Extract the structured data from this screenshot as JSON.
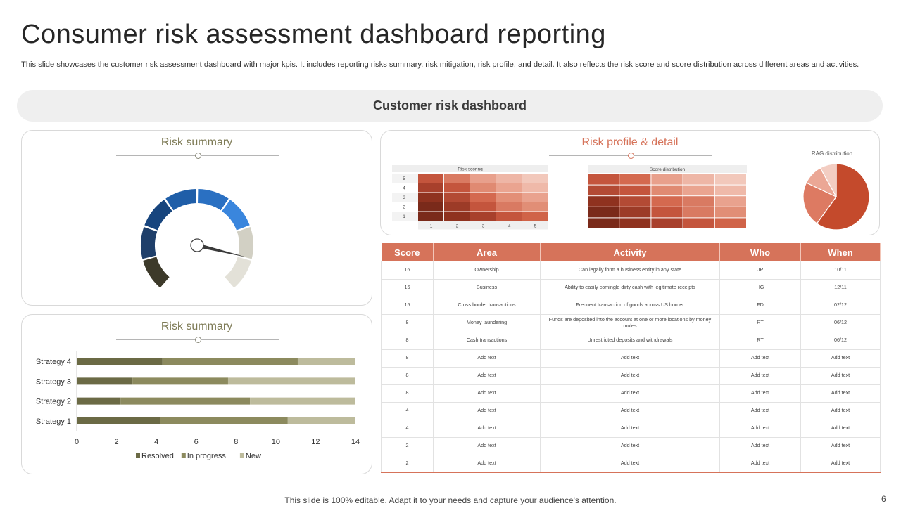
{
  "header": {
    "title": "Consumer risk assessment dashboard reporting",
    "description": "This slide showcases the customer risk assessment dashboard with major kpis. It includes reporting risks summary, risk mitigation, risk profile, and detail. It also reflects the risk score and score distribution across different areas and activities."
  },
  "banner": {
    "label": "Customer risk dashboard"
  },
  "colors": {
    "olive_title": "#7d7a55",
    "orange_title": "#d6735a",
    "table_header": "#d6735a",
    "bar_resolved": "#6b6a45",
    "bar_progress": "#8c8a5e",
    "bar_new": "#bdbb9c"
  },
  "gauge_panel": {
    "title": "Risk summary"
  },
  "profile_panel": {
    "title": "Risk profile & detail",
    "risk_scoring": {
      "label": "Risk scoring",
      "row_labels": [
        "5",
        "4",
        "3",
        "2",
        "1"
      ],
      "col_labels": [
        "1",
        "2",
        "3",
        "4",
        "5"
      ],
      "colors": [
        [
          "#c4553d",
          "#d97a62",
          "#e8a08c",
          "#eeb6a6",
          "#f2c8bb"
        ],
        [
          "#a8402c",
          "#c4553d",
          "#e08a72",
          "#eaa490",
          "#efb9a9"
        ],
        [
          "#8f321f",
          "#b34a34",
          "#d4694f",
          "#e38f77",
          "#e9a28e"
        ],
        [
          "#7a2a1a",
          "#9c3b27",
          "#c4553d",
          "#d97a62",
          "#e18e76"
        ],
        [
          "#7a2a1a",
          "#8f321f",
          "#a8402c",
          "#c4553d",
          "#d06348"
        ]
      ]
    },
    "score_distribution": {
      "label": "Score distribution",
      "colors": [
        [
          "#c4553d",
          "#d4694f",
          "#e8a08c",
          "#eeb6a6",
          "#f2c8bb"
        ],
        [
          "#b34a34",
          "#c4553d",
          "#e08a72",
          "#eaa490",
          "#efb9a9"
        ],
        [
          "#8f321f",
          "#b34a34",
          "#d4694f",
          "#d97a62",
          "#e9a28e"
        ],
        [
          "#7a2a1a",
          "#9c3b27",
          "#c4553d",
          "#d97a62",
          "#e18e76"
        ],
        [
          "#7a2a1a",
          "#8f321f",
          "#a8402c",
          "#c4553d",
          "#d06348"
        ]
      ]
    },
    "rag": {
      "label": "RAG distribution",
      "slices": [
        {
          "value": 60,
          "color": "#c44a2c"
        },
        {
          "value": 22,
          "color": "#dd7a62"
        },
        {
          "value": 10,
          "color": "#eba795"
        },
        {
          "value": 8,
          "color": "#f3cdc2"
        }
      ]
    }
  },
  "table": {
    "columns": [
      "Score",
      "Area",
      "Activity",
      "Who",
      "When"
    ],
    "rows": [
      [
        "16",
        "Ownership",
        "Can legally form a business entity in any state",
        "JP",
        "10/11"
      ],
      [
        "16",
        "Business",
        "Ability to easily comingle dirty cash with legitimate receipts",
        "HG",
        "12/11"
      ],
      [
        "15",
        "Cross border transactions",
        "Frequent transaction of goods across US border",
        "FD",
        "02/12"
      ],
      [
        "8",
        "Money laundering",
        "Funds are deposited into the account at one or more locations by money mules",
        "RT",
        "06/12"
      ],
      [
        "8",
        "Cash transactions",
        "Unrestricted deposits and withdrawals",
        "RT",
        "06/12"
      ],
      [
        "8",
        "Add text",
        "Add text",
        "Add text",
        "Add text"
      ],
      [
        "8",
        "Add text",
        "Add text",
        "Add text",
        "Add text"
      ],
      [
        "8",
        "Add text",
        "Add text",
        "Add text",
        "Add text"
      ],
      [
        "4",
        "Add text",
        "Add text",
        "Add text",
        "Add text"
      ],
      [
        "4",
        "Add text",
        "Add text",
        "Add text",
        "Add text"
      ],
      [
        "2",
        "Add text",
        "Add text",
        "Add text",
        "Add text"
      ],
      [
        "2",
        "Add text",
        "Add text",
        "Add text",
        "Add text"
      ]
    ]
  },
  "bar_panel": {
    "title": "Risk summary"
  },
  "chart_data": [
    {
      "type": "gauge",
      "title": "Risk summary",
      "segments": [
        {
          "color": "#3d3a2a"
        },
        {
          "color": "#1f3f6a"
        },
        {
          "color": "#17457e"
        },
        {
          "color": "#1f5ea8"
        },
        {
          "color": "#2a70c2"
        },
        {
          "color": "#3a86dd"
        },
        {
          "color": "#d2d0c4"
        },
        {
          "color": "#e3e1d8"
        }
      ],
      "needle_fraction": 0.87
    },
    {
      "type": "bar",
      "stacked": true,
      "orientation": "horizontal",
      "title": "Risk summary",
      "categories": [
        "Strategy 1",
        "Strategy 2",
        "Strategy 3",
        "Strategy 4"
      ],
      "series": [
        {
          "name": "Resolved",
          "values": [
            4.2,
            2.2,
            2.8,
            4.3
          ]
        },
        {
          "name": "In progress",
          "values": [
            6.4,
            6.5,
            4.8,
            6.8
          ]
        },
        {
          "name": "New",
          "values": [
            3.4,
            5.3,
            6.4,
            2.9
          ]
        }
      ],
      "xlim": [
        0,
        14
      ],
      "xticks": [
        "0",
        "2",
        "4",
        "6",
        "8",
        "10",
        "12",
        "14"
      ],
      "legend": "bottom",
      "grid": false
    }
  ],
  "footer": {
    "note": "This slide is 100% editable. Adapt it to your needs and capture your audience's attention.",
    "page": "6"
  }
}
